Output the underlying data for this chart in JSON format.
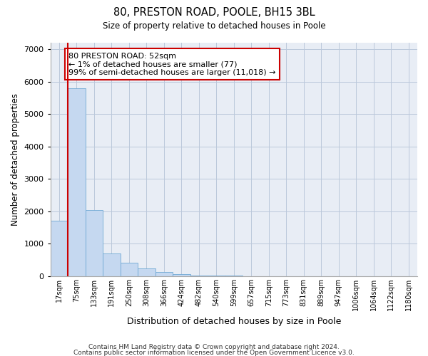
{
  "title1": "80, PRESTON ROAD, POOLE, BH15 3BL",
  "title2": "Size of property relative to detached houses in Poole",
  "xlabel": "Distribution of detached houses by size in Poole",
  "ylabel": "Number of detached properties",
  "categories": [
    "17sqm",
    "75sqm",
    "133sqm",
    "191sqm",
    "250sqm",
    "308sqm",
    "366sqm",
    "424sqm",
    "482sqm",
    "540sqm",
    "599sqm",
    "657sqm",
    "715sqm",
    "773sqm",
    "831sqm",
    "889sqm",
    "947sqm",
    "1006sqm",
    "1064sqm",
    "1122sqm",
    "1180sqm"
  ],
  "values": [
    1700,
    5800,
    2050,
    700,
    420,
    230,
    120,
    70,
    30,
    15,
    10,
    8,
    6,
    5,
    4,
    3,
    2,
    2,
    1,
    1,
    1
  ],
  "bar_color": "#c5d8f0",
  "bar_edge_color": "#6fa8d4",
  "grid_color": "#bbc8db",
  "background_color": "#e8edf5",
  "annotation_text": "80 PRESTON ROAD: 52sqm\n← 1% of detached houses are smaller (77)\n99% of semi-detached houses are larger (11,018) →",
  "annotation_box_color": "#ffffff",
  "annotation_box_edge": "#cc0000",
  "vline_color": "#cc0000",
  "ylim": [
    0,
    7200
  ],
  "yticks": [
    0,
    1000,
    2000,
    3000,
    4000,
    5000,
    6000,
    7000
  ],
  "footer1": "Contains HM Land Registry data © Crown copyright and database right 2024.",
  "footer2": "Contains public sector information licensed under the Open Government Licence v3.0."
}
